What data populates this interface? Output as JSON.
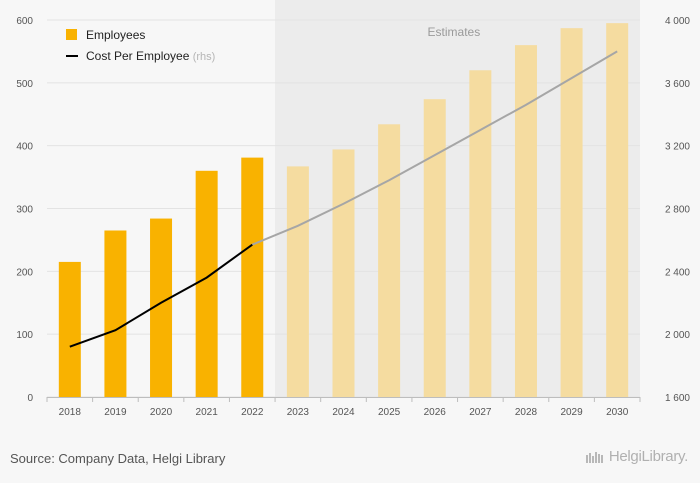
{
  "chart_data": {
    "type": "bar",
    "categories": [
      "2018",
      "2019",
      "2020",
      "2021",
      "2022",
      "2023",
      "2024",
      "2025",
      "2026",
      "2027",
      "2028",
      "2029",
      "2030"
    ],
    "estimates_from": "2023",
    "estimates_label": "Estimates",
    "series": [
      {
        "name": "Employees",
        "kind": "bar",
        "axis": "left",
        "color": "#f9b200",
        "estimate_color": "#f5dca0",
        "values": [
          215,
          265,
          284,
          360,
          381,
          367,
          394,
          434,
          474,
          520,
          560,
          587,
          595
        ]
      },
      {
        "name": "Cost Per Employee",
        "name_suffix": "(rhs)",
        "kind": "line",
        "axis": "right",
        "color": "#000000",
        "estimate_color": "#a6a6a6",
        "values": [
          1920,
          2025,
          2200,
          2360,
          2570,
          2690,
          2830,
          2980,
          3140,
          3300,
          3460,
          3630,
          3800
        ]
      }
    ],
    "y_left": {
      "min": 0,
      "max": 600,
      "ticks": [
        "0",
        "100",
        "200",
        "300",
        "400",
        "500",
        "600"
      ]
    },
    "y_right": {
      "min": 1600,
      "max": 4000,
      "ticks": [
        "1 600",
        "2 000",
        "2 400",
        "2 800",
        "3 200",
        "3 600",
        "4 000"
      ]
    },
    "legend_position": "top-left",
    "grid": true
  },
  "footer": {
    "source": "Source: Company Data, Helgi Library",
    "brand": "HelgiLibrary."
  },
  "colors": {
    "estimate_band": "#ececec",
    "plot_bg": "#f7f7f7"
  }
}
